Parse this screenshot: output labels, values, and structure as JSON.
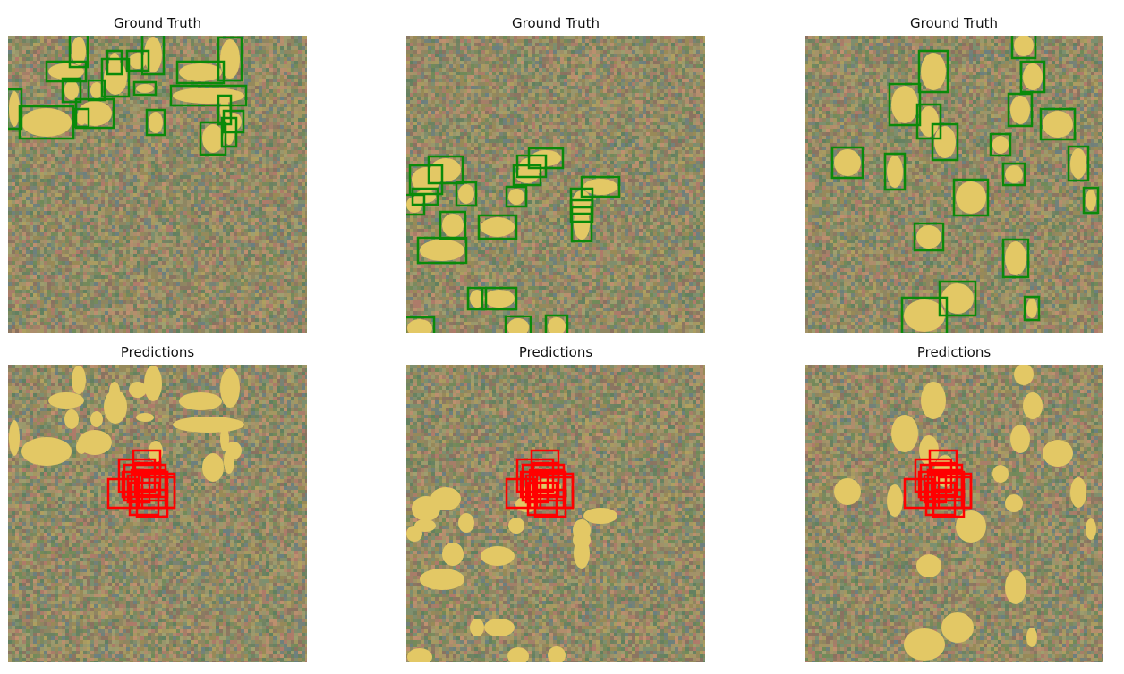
{
  "colors": {
    "background": "#ffffff",
    "noise_palette": [
      "#8f8560",
      "#a8956a",
      "#6f8a58",
      "#b07a6a",
      "#7a9070",
      "#9a8a55",
      "#c09070",
      "#6a7f80",
      "#a0a070",
      "#8a7060",
      "#b0a060",
      "#5f8060"
    ],
    "blob": "#e3c865",
    "ground_truth_box": "#0a8a0a",
    "prediction_box": "#ff0000"
  },
  "panels": [
    {
      "title": "Ground Truth",
      "kind": "ground_truth",
      "object_count": 21
    },
    {
      "title": "Ground Truth",
      "kind": "ground_truth",
      "object_count": 21
    },
    {
      "title": "Ground Truth",
      "kind": "ground_truth",
      "object_count": 20
    },
    {
      "title": "Predictions",
      "kind": "predictions",
      "object_count": 21,
      "predicted_box_count": 12
    },
    {
      "title": "Predictions",
      "kind": "predictions",
      "object_count": 21,
      "predicted_box_count": 12
    },
    {
      "title": "Predictions",
      "kind": "predictions",
      "object_count": 20,
      "predicted_box_count": 12
    }
  ]
}
